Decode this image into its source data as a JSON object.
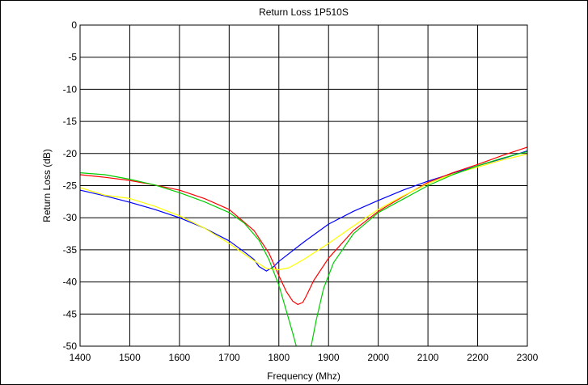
{
  "chart_data": {
    "type": "line",
    "title": "Return Loss 1P510S",
    "xlabel": "Frequency (Mhz)",
    "ylabel": "Return Loss (dB)",
    "xlim": [
      1400,
      2300
    ],
    "ylim": [
      -50,
      0
    ],
    "xticks": [
      1400,
      1500,
      1600,
      1700,
      1800,
      1900,
      2000,
      2100,
      2200,
      2300
    ],
    "yticks": [
      0,
      -5,
      -10,
      -15,
      -20,
      -25,
      -30,
      -35,
      -40,
      -45,
      -50
    ],
    "grid": true,
    "series": [
      {
        "color": "#0000ff",
        "points": [
          [
            1400,
            -25.7
          ],
          [
            1450,
            -26.6
          ],
          [
            1500,
            -27.6
          ],
          [
            1550,
            -28.7
          ],
          [
            1600,
            -30.0
          ],
          [
            1650,
            -31.6
          ],
          [
            1700,
            -33.6
          ],
          [
            1730,
            -35.3
          ],
          [
            1750,
            -36.5
          ],
          [
            1760,
            -37.6
          ],
          [
            1775,
            -38.3
          ],
          [
            1790,
            -37.6
          ],
          [
            1800,
            -36.8
          ],
          [
            1850,
            -33.8
          ],
          [
            1900,
            -31.0
          ],
          [
            1950,
            -29.0
          ],
          [
            2000,
            -27.3
          ],
          [
            2050,
            -25.7
          ],
          [
            2100,
            -24.3
          ],
          [
            2150,
            -23.1
          ],
          [
            2200,
            -21.9
          ],
          [
            2250,
            -20.8
          ],
          [
            2300,
            -19.6
          ]
        ]
      },
      {
        "color": "#ff0000",
        "points": [
          [
            1400,
            -23.3
          ],
          [
            1450,
            -23.7
          ],
          [
            1500,
            -24.2
          ],
          [
            1550,
            -24.9
          ],
          [
            1600,
            -25.7
          ],
          [
            1650,
            -27.0
          ],
          [
            1700,
            -28.7
          ],
          [
            1750,
            -32.0
          ],
          [
            1780,
            -35.5
          ],
          [
            1800,
            -39.0
          ],
          [
            1815,
            -41.5
          ],
          [
            1828,
            -43.0
          ],
          [
            1838,
            -43.5
          ],
          [
            1848,
            -43.2
          ],
          [
            1855,
            -42.2
          ],
          [
            1870,
            -39.8
          ],
          [
            1900,
            -36.3
          ],
          [
            1950,
            -32.0
          ],
          [
            2000,
            -29.0
          ],
          [
            2050,
            -26.7
          ],
          [
            2100,
            -24.5
          ],
          [
            2150,
            -23.0
          ],
          [
            2200,
            -21.7
          ],
          [
            2250,
            -20.3
          ],
          [
            2300,
            -19.0
          ]
        ]
      },
      {
        "color": "#ffff00",
        "points": [
          [
            1400,
            -25.3
          ],
          [
            1450,
            -26.5
          ],
          [
            1500,
            -27.0
          ],
          [
            1550,
            -28.2
          ],
          [
            1600,
            -29.7
          ],
          [
            1650,
            -31.6
          ],
          [
            1700,
            -34.0
          ],
          [
            1740,
            -36.2
          ],
          [
            1775,
            -37.9
          ],
          [
            1800,
            -38.1
          ],
          [
            1820,
            -37.8
          ],
          [
            1850,
            -36.5
          ],
          [
            1900,
            -34.0
          ],
          [
            1950,
            -31.3
          ],
          [
            2000,
            -28.7
          ],
          [
            2050,
            -26.6
          ],
          [
            2100,
            -24.7
          ],
          [
            2150,
            -23.2
          ],
          [
            2200,
            -22.1
          ],
          [
            2250,
            -21.0
          ],
          [
            2300,
            -20.1
          ]
        ]
      },
      {
        "color": "#00cc00",
        "points": [
          [
            1400,
            -23.0
          ],
          [
            1450,
            -23.3
          ],
          [
            1500,
            -24.0
          ],
          [
            1550,
            -24.9
          ],
          [
            1600,
            -26.1
          ],
          [
            1650,
            -27.5
          ],
          [
            1700,
            -29.2
          ],
          [
            1730,
            -30.8
          ],
          [
            1760,
            -33.5
          ],
          [
            1780,
            -36.5
          ],
          [
            1800,
            -40.5
          ],
          [
            1815,
            -44.5
          ],
          [
            1828,
            -48.0
          ],
          [
            1835,
            -50.0
          ]
        ]
      },
      {
        "color": "#00cc00",
        "points": [
          [
            1865,
            -50.0
          ],
          [
            1875,
            -46.0
          ],
          [
            1890,
            -41.0
          ],
          [
            1910,
            -37.0
          ],
          [
            1950,
            -32.5
          ],
          [
            2000,
            -29.2
          ],
          [
            2050,
            -27.1
          ],
          [
            2100,
            -25.0
          ],
          [
            2150,
            -23.3
          ],
          [
            2200,
            -21.9
          ],
          [
            2250,
            -20.7
          ],
          [
            2300,
            -19.7
          ]
        ]
      }
    ]
  }
}
